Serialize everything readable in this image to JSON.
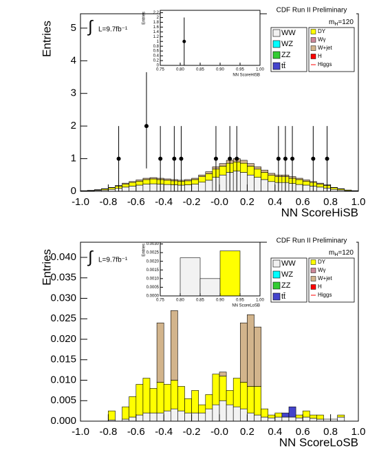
{
  "chart_data": [
    {
      "type": "histogram",
      "title": "CDF Run II Preliminary",
      "xlabel": "NN ScoreHiSB",
      "ylabel": "Entries",
      "lumi_symbol": "∫",
      "lumi": "L=9.7fb⁻¹",
      "mass_label": [
        "m",
        "H",
        "=120"
      ],
      "xlim": [
        -1,
        1
      ],
      "xticks": [
        {
          "value": -1,
          "label": "-1.0"
        },
        {
          "value": -0.8,
          "label": "-0.8"
        },
        {
          "value": -0.6,
          "label": "-0.6"
        },
        {
          "value": -0.4,
          "label": "-0.4"
        },
        {
          "value": -0.2,
          "label": "-0.2"
        },
        {
          "value": 0,
          "label": "-0.0"
        },
        0.2,
        0.4,
        0.6,
        0.8,
        {
          "value": 1,
          "label": "1.0"
        }
      ],
      "ylim": [
        0,
        5.44
      ],
      "yticks": [
        0,
        1,
        2,
        3,
        4,
        5
      ],
      "bins": [
        -1,
        -0.95,
        -0.9,
        -0.85,
        -0.8,
        -0.75,
        -0.7,
        -0.65,
        -0.6,
        -0.55,
        -0.5,
        -0.45,
        -0.4,
        -0.35,
        -0.3,
        -0.25,
        -0.2,
        -0.15,
        -0.1,
        -0.05,
        0,
        0.05,
        0.1,
        0.15,
        0.2,
        0.25,
        0.3,
        0.35,
        0.4,
        0.45,
        0.5,
        0.55,
        0.6,
        0.65,
        0.7,
        0.75,
        0.8,
        0.85,
        0.9,
        0.95,
        1
      ],
      "series": [
        {
          "name": "WW",
          "color": "#f2f2f2",
          "values": [
            0.01,
            0.02,
            0.03,
            0.04,
            0.06,
            0.09,
            0.13,
            0.16,
            0.19,
            0.22,
            0.23,
            0.22,
            0.21,
            0.2,
            0.19,
            0.2,
            0.22,
            0.28,
            0.34,
            0.43,
            0.5,
            0.58,
            0.62,
            0.58,
            0.5,
            0.43,
            0.36,
            0.3,
            0.27,
            0.27,
            0.24,
            0.21,
            0.19,
            0.16,
            0.13,
            0.1,
            0.06,
            0.04,
            0.02,
            0.01
          ]
        },
        {
          "name": "WZ",
          "color": "#00ffff"
        },
        {
          "name": "ZZ",
          "color": "#33cc33"
        },
        {
          "name": "tt̄",
          "color": "#4444cc"
        },
        {
          "name": "DY",
          "color": "#ffff00",
          "values": [
            0.01,
            0.01,
            0.01,
            0.03,
            0.05,
            0.07,
            0.09,
            0.11,
            0.12,
            0.14,
            0.15,
            0.14,
            0.13,
            0.12,
            0.12,
            0.12,
            0.14,
            0.17,
            0.2,
            0.25,
            0.27,
            0.28,
            0.28,
            0.28,
            0.27,
            0.25,
            0.22,
            0.19,
            0.18,
            0.18,
            0.16,
            0.15,
            0.12,
            0.11,
            0.09,
            0.08,
            0.05,
            0.03,
            0.02,
            0.01
          ]
        },
        {
          "name": "Wγ",
          "color": "#cc8899"
        },
        {
          "name": "W+jet",
          "color": "#d2b48c",
          "values": [
            0,
            0,
            0.01,
            0.01,
            0.01,
            0.02,
            0.03,
            0.03,
            0.04,
            0.04,
            0.04,
            0.04,
            0.04,
            0.04,
            0.03,
            0.04,
            0.04,
            0.05,
            0.06,
            0.07,
            0.08,
            0.09,
            0.1,
            0.09,
            0.08,
            0.07,
            0.07,
            0.06,
            0.05,
            0.05,
            0.05,
            0.04,
            0.04,
            0.03,
            0.03,
            0.02,
            0.01,
            0.01,
            0,
            0
          ]
        },
        {
          "name": "H",
          "color": "#ff0000"
        },
        {
          "name": "Higgs",
          "color": "#ff0000"
        }
      ],
      "data": {
        "x": [
          -0.725,
          -0.525,
          -0.425,
          -0.325,
          -0.275,
          -0.025,
          0.075,
          0.125,
          0.425,
          0.475,
          0.525,
          0.675,
          0.775
        ],
        "values": [
          1,
          2,
          1,
          1,
          1,
          1,
          1,
          1,
          1,
          1,
          1,
          1,
          1
        ],
        "err_low": [
          1,
          1.3,
          1,
          1,
          1,
          1,
          1,
          1,
          1,
          1,
          1,
          1,
          1
        ],
        "err_high": [
          1,
          1.65,
          1,
          1,
          1,
          1,
          1,
          1,
          1,
          1,
          1,
          1,
          1
        ]
      },
      "inset": {
        "xlabel": "NN ScoreHiSB",
        "ylabel": "Entries",
        "xlim": [
          0.75,
          1.0
        ],
        "xticks": [
          0.75,
          {
            "value": 0.8,
            "label": "0.80"
          },
          0.85,
          {
            "value": 0.9,
            "label": "0.90"
          },
          0.95,
          {
            "value": 1,
            "label": "1.00"
          }
        ],
        "ylim": [
          0,
          2.3
        ],
        "yticks": [
          0,
          0.2,
          0.4,
          0.6,
          0.8,
          1,
          1.2,
          1.4,
          1.6,
          1.8,
          2,
          2.2
        ],
        "data": {
          "x": [
            0.81
          ],
          "values": [
            1
          ],
          "err_low": [
            1
          ],
          "err_high": [
            1
          ]
        }
      }
    },
    {
      "type": "histogram",
      "title": "CDF Run II Preliminary",
      "xlabel": "NN ScoreLoSB",
      "ylabel": "Entries",
      "lumi_symbol": "∫",
      "lumi": "L=9.7fb⁻¹",
      "mass_label": [
        "m",
        "H",
        "=120"
      ],
      "xlim": [
        -1,
        1
      ],
      "xticks": [
        {
          "value": -1,
          "label": "-1.0"
        },
        {
          "value": -0.8,
          "label": "-0.8"
        },
        {
          "value": -0.6,
          "label": "-0.6"
        },
        {
          "value": -0.4,
          "label": "-0.4"
        },
        {
          "value": -0.2,
          "label": "-0.2"
        },
        {
          "value": 0,
          "label": "-0.0"
        },
        0.2,
        0.4,
        0.6,
        0.8,
        {
          "value": 1,
          "label": "1.0"
        }
      ],
      "ylim": [
        0,
        0.0437
      ],
      "yticks": [
        {
          "value": 0,
          "label": "0.000"
        },
        0.005,
        {
          "value": 0.01,
          "label": "0.010"
        },
        0.015,
        {
          "value": 0.02,
          "label": "0.020"
        },
        0.025,
        {
          "value": 0.03,
          "label": "0.030"
        },
        0.035,
        {
          "value": 0.04,
          "label": "0.040"
        }
      ],
      "bins": [
        -1,
        -0.95,
        -0.9,
        -0.85,
        -0.8,
        -0.75,
        -0.7,
        -0.65,
        -0.6,
        -0.55,
        -0.5,
        -0.45,
        -0.4,
        -0.35,
        -0.3,
        -0.25,
        -0.2,
        -0.15,
        -0.1,
        -0.05,
        0,
        0.05,
        0.1,
        0.15,
        0.2,
        0.25,
        0.3,
        0.35,
        0.4,
        0.45,
        0.5,
        0.55,
        0.6,
        0.65,
        0.7,
        0.75,
        0.8,
        0.85,
        0.9,
        0.95,
        1
      ],
      "series": [
        {
          "name": "WW",
          "color": "#f2f2f2",
          "values": [
            0,
            0,
            0,
            0,
            0.0003,
            0,
            0.0005,
            0.001,
            0.0015,
            0.002,
            0.002,
            0.002,
            0.0025,
            0.003,
            0.0025,
            0.002,
            0.002,
            0.002,
            0.003,
            0.004,
            0.005,
            0.004,
            0.0035,
            0.003,
            0.002,
            0.0015,
            0.001,
            0.0008,
            0.001,
            0.001,
            0.001,
            0.0008,
            0.001,
            0.0007,
            0.0005,
            0.0005,
            0.0005,
            0.001,
            0,
            0
          ]
        },
        {
          "name": "WZ",
          "color": "#00ffff"
        },
        {
          "name": "ZZ",
          "color": "#33cc33"
        },
        {
          "name": "tt̄",
          "color": "#4444cc",
          "values": [
            0,
            0,
            0,
            0,
            0,
            0,
            0,
            0,
            0,
            0,
            0,
            0,
            0,
            0,
            0,
            0,
            0,
            0,
            0,
            0,
            0,
            0,
            0,
            0,
            0,
            0,
            0,
            0,
            0,
            0.001,
            0.0025,
            0,
            0,
            0,
            0,
            0,
            0,
            0,
            0,
            0
          ]
        },
        {
          "name": "DY",
          "color": "#ffff00",
          "values": [
            0,
            0,
            0,
            0,
            0.0022,
            0,
            0.003,
            0.005,
            0.0075,
            0.0085,
            0.006,
            0.0075,
            0.0065,
            0.007,
            0.006,
            0.0035,
            0.0055,
            0.002,
            0.0035,
            0.0075,
            0.006,
            0.0035,
            0.007,
            0.0065,
            0.0065,
            0.007,
            0.002,
            0.0007,
            0.001,
            0,
            0,
            0.0007,
            0.0015,
            0.0008,
            0.001,
            0,
            0,
            0.0005,
            0,
            0
          ]
        },
        {
          "name": "Wγ",
          "color": "#cc8899"
        },
        {
          "name": "W+jet",
          "color": "#d2b48c",
          "values": [
            0,
            0,
            0,
            0,
            0,
            0,
            0,
            0,
            0,
            0,
            0,
            0.0145,
            0,
            0.017,
            0,
            0,
            0,
            0,
            0,
            0,
            0.001,
            0,
            0,
            0.0145,
            0.0175,
            0.0145,
            0,
            0,
            0,
            0,
            0,
            0,
            0,
            0,
            0,
            0,
            0,
            0,
            0,
            0
          ]
        },
        {
          "name": "H",
          "color": "#ff0000"
        },
        {
          "name": "Higgs",
          "color": "#ff0000"
        }
      ],
      "inset": {
        "xlabel": "NN ScoreLoSB",
        "ylabel": "Entries",
        "xlim": [
          0.75,
          1.0
        ],
        "xticks": [
          0.75,
          {
            "value": 0.8,
            "label": "0.80"
          },
          0.85,
          {
            "value": 0.9,
            "label": "0.90"
          },
          0.95,
          {
            "value": 1,
            "label": "1.00"
          }
        ],
        "ylim": [
          0,
          0.0031
        ],
        "yticks": [
          {
            "value": 0,
            "label": "0.0000"
          },
          0.0005,
          {
            "value": 0.001,
            "label": "0.0010"
          },
          0.0015,
          {
            "value": 0.002,
            "label": "0.0020"
          },
          0.0025,
          {
            "value": 0.003,
            "label": "0.0030"
          }
        ],
        "bins": [
          0.75,
          0.8,
          0.85,
          0.9,
          0.95,
          1.0
        ],
        "series": [
          {
            "name": "WW",
            "color": "#f2f2f2",
            "values": [
              0,
              0.0022,
              0.001,
              0,
              0
            ]
          },
          {
            "name": "DY",
            "color": "#ffff00",
            "values": [
              0,
              0,
              0,
              0.0026,
              0
            ]
          }
        ]
      }
    }
  ]
}
